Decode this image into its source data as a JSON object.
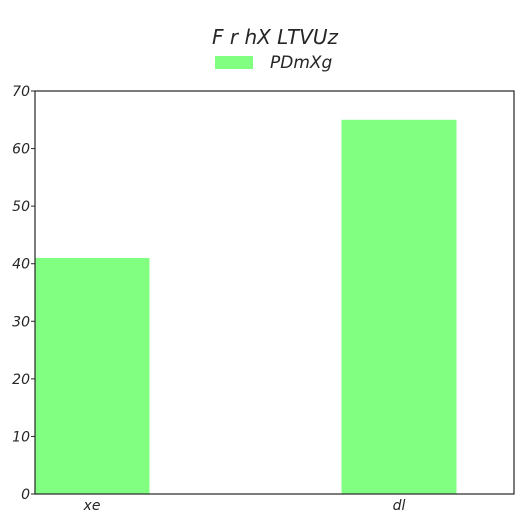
{
  "chart_data": {
    "type": "bar",
    "title": "F r hX LTVUz",
    "xlabel": "",
    "ylabel": "",
    "categories": [
      "xe",
      "dl"
    ],
    "series": [
      {
        "name": "PDmXg",
        "values": [
          41,
          65
        ],
        "color": "#80ff80"
      }
    ],
    "ylim": [
      0,
      70
    ],
    "yticks": [
      0,
      10,
      20,
      30,
      40,
      50,
      60,
      70
    ],
    "grid": false,
    "legend": "top-center",
    "axis_color": "#262626"
  }
}
